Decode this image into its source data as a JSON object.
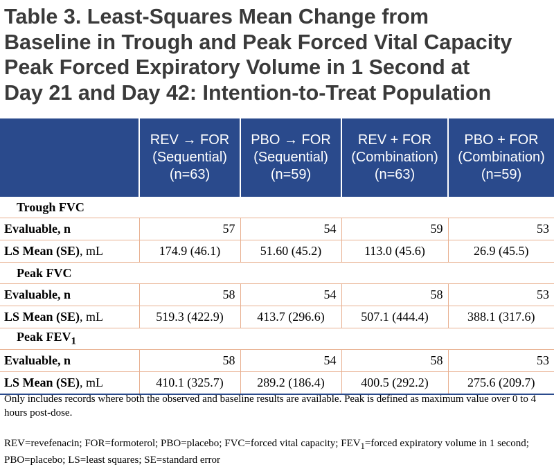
{
  "title": {
    "line1": "Table 3. Least-Squares Mean Change from",
    "line2": "Baseline in Trough and Peak Forced Vital Capacity",
    "line3": "Peak Forced Expiratory Volume in 1 Second at",
    "line4": "Day 21 and Day 42: Intention-to-Treat Population"
  },
  "columns": [
    {
      "line1": "REV → FOR",
      "line2": "(Sequential)",
      "line3": "(n=63)"
    },
    {
      "line1": "PBO → FOR",
      "line2": "(Sequential)",
      "line3": "(n=59)"
    },
    {
      "line1": "REV + FOR",
      "line2": "(Combination)",
      "line3": "(n=63)"
    },
    {
      "line1": "PBO + FOR",
      "line2": "(Combination)",
      "line3": "(n=59)"
    }
  ],
  "sections": [
    {
      "label": "Trough FVC",
      "evaluable_label": "Evaluable, n",
      "evaluable": [
        "57",
        "54",
        "59",
        "53"
      ],
      "mean_label_bold": "LS Mean (SE)",
      "mean_label_rest": ", mL",
      "means": [
        "174.9 (46.1)",
        "51.60 (45.2)",
        "113.0 (45.6)",
        "26.9 (45.5)"
      ]
    },
    {
      "label": "Peak FVC",
      "evaluable_label": "Evaluable, n",
      "evaluable": [
        "58",
        "54",
        "58",
        "53"
      ],
      "mean_label_bold": "LS Mean (SE)",
      "mean_label_rest": ", mL",
      "means": [
        "519.3 (422.9)",
        "413.7 (296.6)",
        "507.1 (444.4)",
        "388.1 (317.6)"
      ]
    },
    {
      "label_main": "Peak FEV",
      "label_sub": "1",
      "evaluable_label": "Evaluable, n",
      "evaluable": [
        "58",
        "54",
        "58",
        "53"
      ],
      "mean_label_bold": "LS Mean (SE)",
      "mean_label_rest": ", mL",
      "means": [
        "410.1 (325.7)",
        "289.2 (186.4)",
        "400.5 (292.2)",
        "275.6 (209.7)"
      ]
    }
  ],
  "footnotes": {
    "note1": "Only includes records where both the observed and baseline results are available. Peak is defined as maximum value over 0 to 4 hours post-dose.",
    "abbrev_part1": "REV=revefenacin; FOR=formoterol; PBO=placebo; FVC=forced vital capacity; FEV",
    "abbrev_sub": "1",
    "abbrev_part2": "=forced expiratory volume in 1 second; PBO=placebo; LS=least squares; SE=standard error"
  }
}
